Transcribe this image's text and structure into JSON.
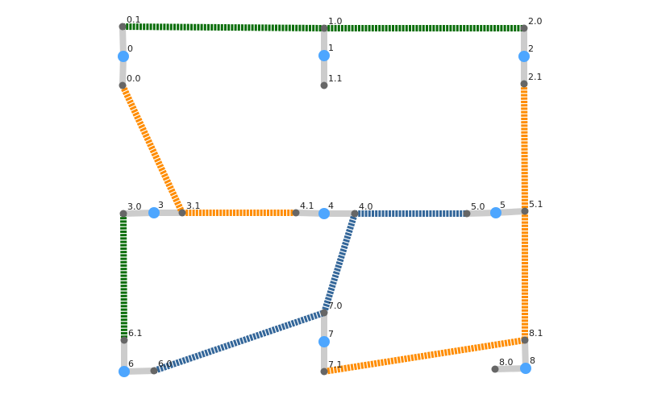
{
  "colors": {
    "stub": "#cccccc",
    "port": "#666666",
    "node": "#4da6ff",
    "green": "#0b6e0b",
    "orange": "#ff8c00",
    "blue": "#336699"
  },
  "nodes": [
    {
      "id": "0",
      "label": "0"
    },
    {
      "id": "1",
      "label": "1"
    },
    {
      "id": "2",
      "label": "2"
    },
    {
      "id": "3",
      "label": "3"
    },
    {
      "id": "4",
      "label": "4"
    },
    {
      "id": "5",
      "label": "5"
    },
    {
      "id": "6",
      "label": "6"
    },
    {
      "id": "7",
      "label": "7"
    },
    {
      "id": "8",
      "label": "8"
    }
  ],
  "ports": [
    {
      "id": "0.0",
      "label": "0.0",
      "node": "0"
    },
    {
      "id": "0.1",
      "label": "0.1",
      "node": "0"
    },
    {
      "id": "1.0",
      "label": "1.0",
      "node": "1"
    },
    {
      "id": "1.1",
      "label": "1.1",
      "node": "1"
    },
    {
      "id": "2.0",
      "label": "2.0",
      "node": "2"
    },
    {
      "id": "2.1",
      "label": "2.1",
      "node": "2"
    },
    {
      "id": "3.0",
      "label": "3.0",
      "node": "3"
    },
    {
      "id": "3.1",
      "label": "3.1",
      "node": "3"
    },
    {
      "id": "4.0",
      "label": "4.0",
      "node": "4"
    },
    {
      "id": "4.1",
      "label": "4.1",
      "node": "4"
    },
    {
      "id": "5.0",
      "label": "5.0",
      "node": "5"
    },
    {
      "id": "5.1",
      "label": "5.1",
      "node": "5"
    },
    {
      "id": "6.0",
      "label": "6.0",
      "node": "6"
    },
    {
      "id": "6.1",
      "label": "6.1",
      "node": "6"
    },
    {
      "id": "7.0",
      "label": "7.0",
      "node": "7"
    },
    {
      "id": "7.1",
      "label": "7.1",
      "node": "7"
    },
    {
      "id": "8.0",
      "label": "8.0",
      "node": "8"
    },
    {
      "id": "8.1",
      "label": "8.1",
      "node": "8"
    }
  ],
  "links": [
    {
      "from": "0.1",
      "to": "1.0",
      "color": "green"
    },
    {
      "from": "1.0",
      "to": "2.0",
      "color": "green"
    },
    {
      "from": "3.0",
      "to": "6.1",
      "color": "green"
    },
    {
      "from": "0.0",
      "to": "3.1",
      "color": "orange"
    },
    {
      "from": "3.1",
      "to": "4.1",
      "color": "orange"
    },
    {
      "from": "2.1",
      "to": "5.1",
      "color": "orange"
    },
    {
      "from": "5.1",
      "to": "8.1",
      "color": "orange"
    },
    {
      "from": "7.1",
      "to": "8.1",
      "color": "orange"
    },
    {
      "from": "4.0",
      "to": "5.0",
      "color": "blue"
    },
    {
      "from": "4.0",
      "to": "7.0",
      "color": "blue"
    },
    {
      "from": "6.0",
      "to": "7.0",
      "color": "blue"
    }
  ]
}
